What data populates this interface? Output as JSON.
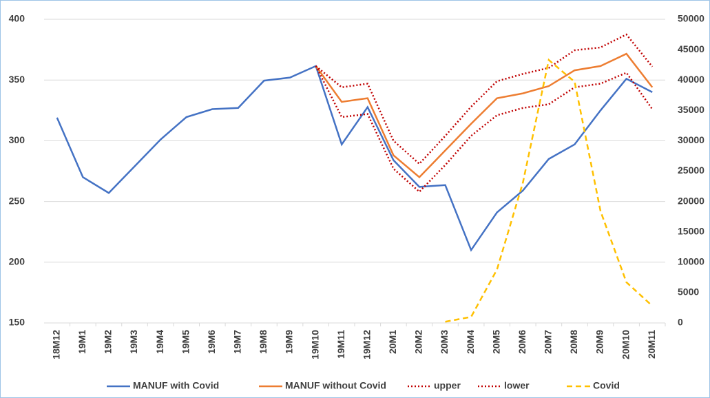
{
  "chart_data": {
    "type": "line",
    "categories": [
      "18M12",
      "19M1",
      "19M2",
      "19M3",
      "19M4",
      "19M5",
      "19M6",
      "19M7",
      "19M8",
      "19M9",
      "19M10",
      "19M11",
      "19M12",
      "20M1",
      "20M2",
      "20M3",
      "20M4",
      "20M5",
      "20M6",
      "20M7",
      "20M8",
      "20M9",
      "20M10",
      "20M11"
    ],
    "ylim": [
      150,
      400
    ],
    "yticks": [
      150,
      200,
      250,
      300,
      350,
      400
    ],
    "y2lim": [
      0,
      50000
    ],
    "y2ticks": [
      0,
      5000,
      10000,
      15000,
      20000,
      25000,
      30000,
      35000,
      40000,
      45000,
      50000
    ],
    "grid": true,
    "legend": "bottom",
    "series": [
      {
        "name": "MANUF with Covid",
        "color": "#4472c4",
        "style": "solid",
        "values": [
          319,
          270,
          257,
          279,
          301,
          319.5,
          326,
          327,
          349.5,
          352,
          361.5,
          297,
          327.7,
          284,
          262,
          263.5,
          210,
          241,
          259,
          285,
          297,
          325,
          351,
          340
        ]
      },
      {
        "name": "MANUF without Covid",
        "color": "#ed7d31",
        "style": "solid",
        "values": [
          null,
          null,
          null,
          null,
          null,
          null,
          null,
          null,
          null,
          null,
          361.5,
          332,
          335,
          288,
          270,
          292,
          314,
          335,
          339,
          345,
          358,
          361.5,
          371.6,
          344
        ]
      },
      {
        "name": "upper",
        "color": "#c00000",
        "style": "dotted",
        "values": [
          null,
          null,
          null,
          null,
          null,
          null,
          null,
          null,
          null,
          null,
          361.5,
          344,
          347,
          300,
          281,
          304,
          328,
          349,
          355,
          360,
          374.5,
          376.8,
          387.5,
          361
        ]
      },
      {
        "name": "lower",
        "color": "#c00000",
        "style": "dotted",
        "values": [
          null,
          null,
          null,
          null,
          null,
          null,
          null,
          null,
          null,
          null,
          361.5,
          319.5,
          322,
          277,
          258,
          280,
          304,
          321,
          327,
          330,
          344,
          347,
          356,
          326
        ]
      },
      {
        "name": "Covid",
        "color": "#ffc000",
        "style": "dashed",
        "axis": "y2",
        "values": [
          null,
          null,
          null,
          null,
          null,
          null,
          null,
          null,
          null,
          null,
          null,
          null,
          null,
          null,
          null,
          200,
          1000,
          8800,
          23100,
          43300,
          39700,
          18400,
          6700,
          2800
        ]
      }
    ]
  }
}
